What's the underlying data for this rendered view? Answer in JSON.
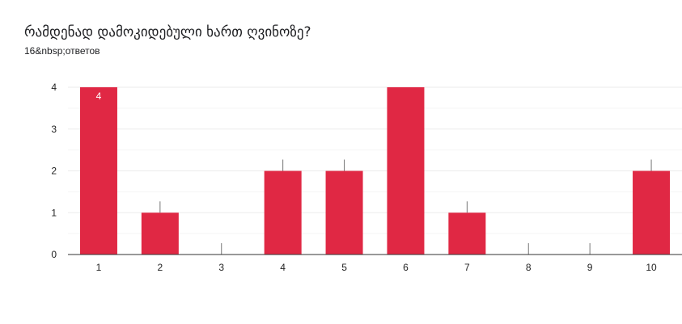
{
  "header": {
    "title": "რამდენად დამოკიდებული ხართ ღვინოზე?",
    "response_count": "16&nbsp;ответов"
  },
  "colors": {
    "bar": "#e02844",
    "grid": "#ebebeb",
    "axis": "#333333",
    "error_line": "#757575"
  },
  "chart_data": {
    "type": "bar",
    "title": "რამდენად დამოკიდებული ხართ ღვინოზე?",
    "categories": [
      "1",
      "2",
      "3",
      "4",
      "5",
      "6",
      "7",
      "8",
      "9",
      "10"
    ],
    "values": [
      4,
      1,
      0,
      2,
      2,
      4,
      1,
      0,
      0,
      2
    ],
    "data_labels": [
      {
        "category": "1",
        "text": "4"
      }
    ],
    "y_ticks": [
      "0",
      "1",
      "2",
      "3",
      "4"
    ],
    "ylim": [
      0,
      4
    ],
    "xlabel": "",
    "ylabel": "",
    "grid": true,
    "legend": "none"
  }
}
